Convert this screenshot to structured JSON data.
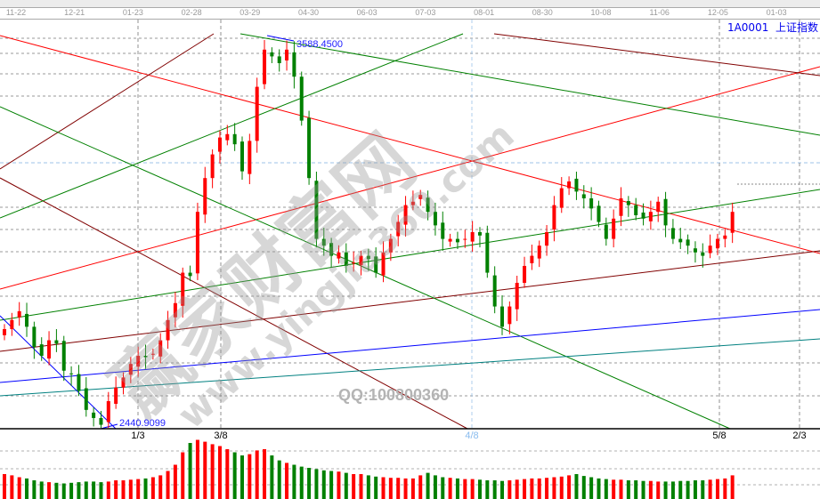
{
  "toolbar": {
    "icons": [
      "draw-line-icon",
      "channel-icon",
      "rectangle-icon",
      "fib-icon",
      "pen-icon",
      "dots-icon",
      "bars-icon",
      "box-icon",
      "arrow-icon",
      "ruler-icon",
      "percent-icon",
      "text-icon",
      "gann-icon",
      "circle-icon",
      "level-icon",
      "pencil-icon",
      "angle-icon",
      "fan-icon"
    ]
  },
  "instrument": {
    "code": "1A0001",
    "name": "上证指数"
  },
  "watermark": {
    "brand": "赢家财富网",
    "site": "www.yingjia360.com",
    "qq": "QQ:100800360"
  },
  "chart_data": {
    "type": "candlestick",
    "title": "1A0001 上证指数",
    "date_ticks": [
      "11-22",
      "12-21",
      "01-23",
      "02-28",
      "03-29",
      "04-30",
      "06-03",
      "07-03",
      "08-01",
      "08-30",
      "10-08",
      "11-06",
      "12-05",
      "01-03"
    ],
    "cycle_ticks": [
      {
        "label": "1/3",
        "color": "#000000"
      },
      {
        "label": "3/8",
        "color": "#000000"
      },
      {
        "label": "4/8",
        "color": "#88bbee"
      },
      {
        "label": "5/8",
        "color": "#000000"
      },
      {
        "label": "2/3",
        "color": "#000000"
      }
    ],
    "high_label": "3588.4500",
    "low_label": "2440.9099",
    "ylim": [
      2440.9099,
      3588.45
    ],
    "closes": [
      2733,
      2760,
      2786,
      2740,
      2680,
      2654,
      2700,
      2690,
      2610,
      2600,
      2550,
      2494,
      2470,
      2450,
      2520,
      2560,
      2590,
      2630,
      2654,
      2650,
      2660,
      2700,
      2760,
      2810,
      2900,
      2890,
      3080,
      3180,
      3250,
      3300,
      3310,
      3280,
      3200,
      3290,
      3450,
      3560,
      3540,
      3520,
      3560,
      3480,
      3350,
      3180,
      3000,
      2980,
      2950,
      2960,
      2920,
      2930,
      2950,
      2940,
      2900,
      2960,
      3000,
      3050,
      3100,
      3110,
      3130,
      3080,
      3040,
      3000,
      3000,
      2990,
      3000,
      3020,
      3010,
      2900,
      2800,
      2740,
      2800,
      2870,
      2920,
      2950,
      2980,
      3020,
      3100,
      3150,
      3170,
      3140,
      3120,
      3090,
      3050,
      3000,
      3060,
      3120,
      3100,
      3070,
      3060,
      3080,
      3110,
      3040,
      3000,
      2990,
      2980,
      2960,
      2950,
      2980,
      3000,
      3010,
      3080
    ],
    "volume": [
      40,
      38,
      35,
      33,
      30,
      28,
      27,
      26,
      25,
      26,
      27,
      28,
      28,
      27,
      28,
      30,
      30,
      31,
      32,
      33,
      35,
      38,
      45,
      55,
      75,
      90,
      95,
      92,
      88,
      85,
      80,
      75,
      70,
      72,
      78,
      80,
      70,
      62,
      58,
      55,
      52,
      50,
      48,
      46,
      45,
      44,
      42,
      40,
      40,
      38,
      36,
      35,
      34,
      34,
      33,
      33,
      38,
      42,
      38,
      35,
      34,
      33,
      32,
      32,
      31,
      30,
      30,
      29,
      30,
      31,
      32,
      33,
      33,
      34,
      35,
      36,
      38,
      40,
      37,
      35,
      33,
      32,
      31,
      31,
      30,
      30,
      29,
      29,
      28,
      28,
      28,
      29,
      29,
      30,
      30,
      31,
      32,
      33,
      38
    ],
    "colors": {
      "up": "#ff0000",
      "down": "#008000"
    },
    "grid": true
  }
}
